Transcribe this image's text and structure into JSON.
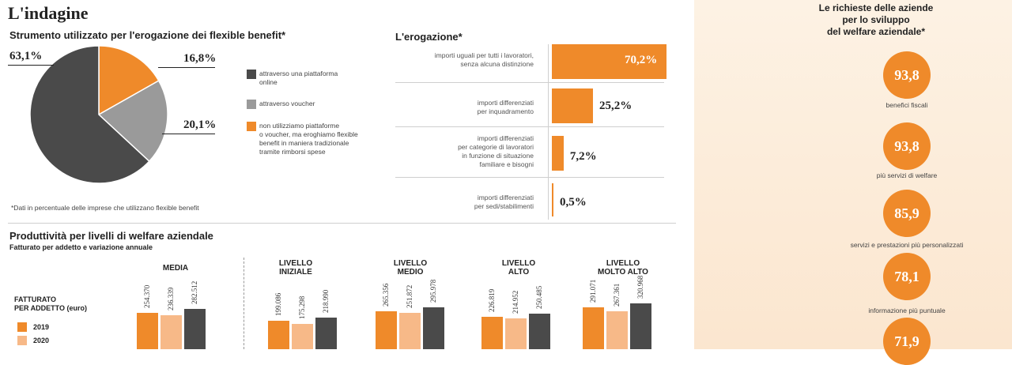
{
  "header": {
    "title": "L'indagine"
  },
  "pie_section": {
    "title": "Strumento utilizzato per l'erogazione dei flexible benefit*",
    "labels": [
      "63,1%",
      "16,8%",
      "20,1%"
    ],
    "legend": [
      {
        "color": "#4a4a4a",
        "lines": [
          "attraverso una piattaforma",
          "online"
        ]
      },
      {
        "color": "#9a9a9a",
        "lines": [
          "attraverso voucher"
        ]
      },
      {
        "color": "#ef8a2a",
        "lines": [
          "non utilizziamo piattaforme",
          "o voucher, ma eroghiamo flexible",
          "benefit in maniera tradizionale",
          "tramite rimborsi spese"
        ]
      }
    ],
    "footnote": "*Dati in percentuale delle imprese che utilizzano flexible benefit"
  },
  "erogazione": {
    "title": "L'erogazione*",
    "rows": [
      {
        "lines": [
          "importi uguali per tutti i lavoratori,",
          "senza alcuna distinzione"
        ],
        "value_label": "70,2%"
      },
      {
        "lines": [
          "importi differenziati",
          "per inquadramento"
        ],
        "value_label": "25,2%"
      },
      {
        "lines": [
          "importi differenziati",
          "per categorie di lavoratori",
          "in funzione di situazione",
          "familiare e bisogni"
        ],
        "value_label": "7,2%"
      },
      {
        "lines": [
          "importi differenziati",
          "per sedi/stabilimenti"
        ],
        "value_label": "0,5%"
      }
    ]
  },
  "produttivita": {
    "title": "Produttività per livelli di welfare aziendale",
    "subtitle": "Fatturato per addetto e variazione annuale",
    "legend_title": [
      "FATTURATO",
      "PER ADDETTO (euro)"
    ],
    "legend": [
      {
        "label": "2019",
        "color": "#ef8a2a"
      },
      {
        "label": "2020",
        "color": "#f7b988"
      }
    ],
    "groups": [
      {
        "title": [
          "MEDIA"
        ]
      },
      {
        "title": [
          "LIVELLO",
          "INIZIALE"
        ]
      },
      {
        "title": [
          "LIVELLO",
          "MEDIO"
        ]
      },
      {
        "title": [
          "LIVELLO",
          "ALTO"
        ]
      },
      {
        "title": [
          "LIVELLO",
          "MOLTO ALTO"
        ]
      }
    ]
  },
  "richieste": {
    "title": [
      "Le richieste delle aziende",
      "per lo sviluppo",
      "del welfare aziendale*"
    ],
    "items": [
      {
        "value": "93,8",
        "label": "benefici fiscali"
      },
      {
        "value": "93,8",
        "label": "più servizi di welfare"
      },
      {
        "value": "85,9",
        "label": "servizi e prestazioni più personalizzati"
      },
      {
        "value": "78,1",
        "label": "informazione più puntuale"
      },
      {
        "value": "71,9",
        "label": ""
      }
    ]
  },
  "chart_data": [
    {
      "type": "pie",
      "categories": [
        "attraverso una piattaforma online",
        "attraverso voucher",
        "non utilizziamo piattaforme o voucher"
      ],
      "values": [
        63.1,
        20.1,
        16.8
      ],
      "colors": [
        "#4a4a4a",
        "#9a9a9a",
        "#ef8a2a"
      ]
    },
    {
      "type": "bar",
      "orientation": "horizontal",
      "values": [
        70.2,
        25.2,
        7.2,
        0.5
      ],
      "xlim": [
        0,
        100
      ]
    },
    {
      "type": "bar",
      "categories": [
        "MEDIA",
        "LIVELLO INIZIALE",
        "LIVELLO MEDIO",
        "LIVELLO ALTO",
        "LIVELLO MOLTO ALTO"
      ],
      "series": [
        {
          "name": "2019",
          "color": "#ef8a2a",
          "values": [
            254370,
            199086,
            265356,
            226819,
            291071
          ],
          "labels": [
            "254.370",
            "199.086",
            "265.356",
            "226.819",
            "291.071"
          ]
        },
        {
          "name": "2020",
          "color": "#f7b988",
          "values": [
            236339,
            175298,
            251872,
            214952,
            267361
          ],
          "labels": [
            "236.339",
            "175.298",
            "251.872",
            "214.952",
            "267.361"
          ]
        },
        {
          "color": "#4a4a4a",
          "values": [
            282512,
            218990,
            295978,
            250485,
            320968
          ],
          "labels": [
            "282.512",
            "218.990",
            "295.978",
            "250.485",
            "320.968"
          ]
        }
      ],
      "ylim": [
        0,
        330000
      ]
    }
  ]
}
